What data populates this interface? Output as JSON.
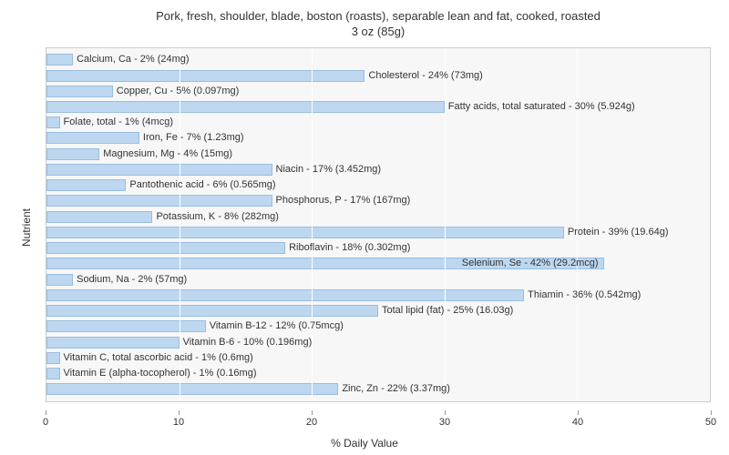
{
  "chart": {
    "type": "bar-horizontal",
    "title_line1": "Pork, fresh, shoulder, blade, boston (roasts), separable lean and fat, cooked, roasted",
    "title_line2": "3 oz (85g)",
    "title_fontsize": 13,
    "y_axis_label": "Nutrient",
    "x_axis_label": "% Daily Value",
    "label_fontsize": 12,
    "xlim": [
      0,
      50
    ],
    "xtick_step": 10,
    "xticks": [
      "0",
      "10",
      "20",
      "30",
      "40",
      "50"
    ],
    "background_color": "#f7f7f7",
    "grid_color": "#ffffff",
    "bar_color": "#bdd7f0",
    "bar_border_color": "#9abde0",
    "text_color": "#333333",
    "bar_label_fontsize": 11,
    "tick_fontsize": 11,
    "nutrients": [
      {
        "label": "Calcium, Ca - 2% (24mg)",
        "value": 2,
        "label_inside": false
      },
      {
        "label": "Cholesterol - 24% (73mg)",
        "value": 24,
        "label_inside": false
      },
      {
        "label": "Copper, Cu - 5% (0.097mg)",
        "value": 5,
        "label_inside": false
      },
      {
        "label": "Fatty acids, total saturated - 30% (5.924g)",
        "value": 30,
        "label_inside": false
      },
      {
        "label": "Folate, total - 1% (4mcg)",
        "value": 1,
        "label_inside": false
      },
      {
        "label": "Iron, Fe - 7% (1.23mg)",
        "value": 7,
        "label_inside": false
      },
      {
        "label": "Magnesium, Mg - 4% (15mg)",
        "value": 4,
        "label_inside": false
      },
      {
        "label": "Niacin - 17% (3.452mg)",
        "value": 17,
        "label_inside": false
      },
      {
        "label": "Pantothenic acid - 6% (0.565mg)",
        "value": 6,
        "label_inside": false
      },
      {
        "label": "Phosphorus, P - 17% (167mg)",
        "value": 17,
        "label_inside": false
      },
      {
        "label": "Potassium, K - 8% (282mg)",
        "value": 8,
        "label_inside": false
      },
      {
        "label": "Protein - 39% (19.64g)",
        "value": 39,
        "label_inside": false
      },
      {
        "label": "Riboflavin - 18% (0.302mg)",
        "value": 18,
        "label_inside": false
      },
      {
        "label": "Selenium, Se - 42% (29.2mcg)",
        "value": 42,
        "label_inside": true
      },
      {
        "label": "Sodium, Na - 2% (57mg)",
        "value": 2,
        "label_inside": false
      },
      {
        "label": "Thiamin - 36% (0.542mg)",
        "value": 36,
        "label_inside": false
      },
      {
        "label": "Total lipid (fat) - 25% (16.03g)",
        "value": 25,
        "label_inside": false
      },
      {
        "label": "Vitamin B-12 - 12% (0.75mcg)",
        "value": 12,
        "label_inside": false
      },
      {
        "label": "Vitamin B-6 - 10% (0.196mg)",
        "value": 10,
        "label_inside": false
      },
      {
        "label": "Vitamin C, total ascorbic acid - 1% (0.6mg)",
        "value": 1,
        "label_inside": false
      },
      {
        "label": "Vitamin E (alpha-tocopherol) - 1% (0.16mg)",
        "value": 1,
        "label_inside": false
      },
      {
        "label": "Zinc, Zn - 22% (3.37mg)",
        "value": 22,
        "label_inside": false
      }
    ]
  }
}
